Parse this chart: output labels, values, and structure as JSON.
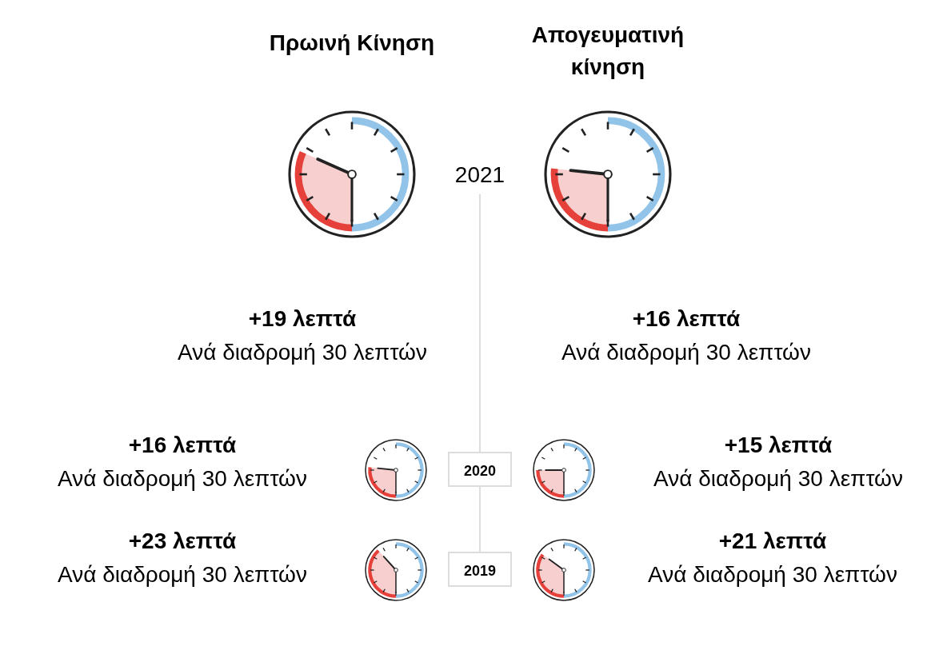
{
  "chart_data": {
    "type": "other",
    "categories": [
      "Πρωινή Κίνηση",
      "Απογευματινή κίνηση"
    ],
    "series": [
      {
        "name": "2021",
        "values": [
          19,
          16
        ],
        "value_labels": [
          "+19 λεπτά",
          "+16 λεπτά"
        ]
      },
      {
        "name": "2020",
        "values": [
          16,
          15
        ],
        "value_labels": [
          "+16 λεπτά",
          "+15 λεπτά"
        ]
      },
      {
        "name": "2019",
        "values": [
          23,
          21
        ],
        "value_labels": [
          "+23 λεπτά",
          "+21 λεπτά"
        ]
      }
    ],
    "annotations": [
      "Ανά διαδρομή 30 λεπτών",
      "Ανά διαδρομή 30 λεπτών",
      "Ανά διαδρομή 30 λεπτών",
      "Ανά διαδρομή 30 λεπτών",
      "Ανά διαδρομή 30 λεπτών",
      "Ανά διαδρομή 30 λεπτών"
    ]
  }
}
